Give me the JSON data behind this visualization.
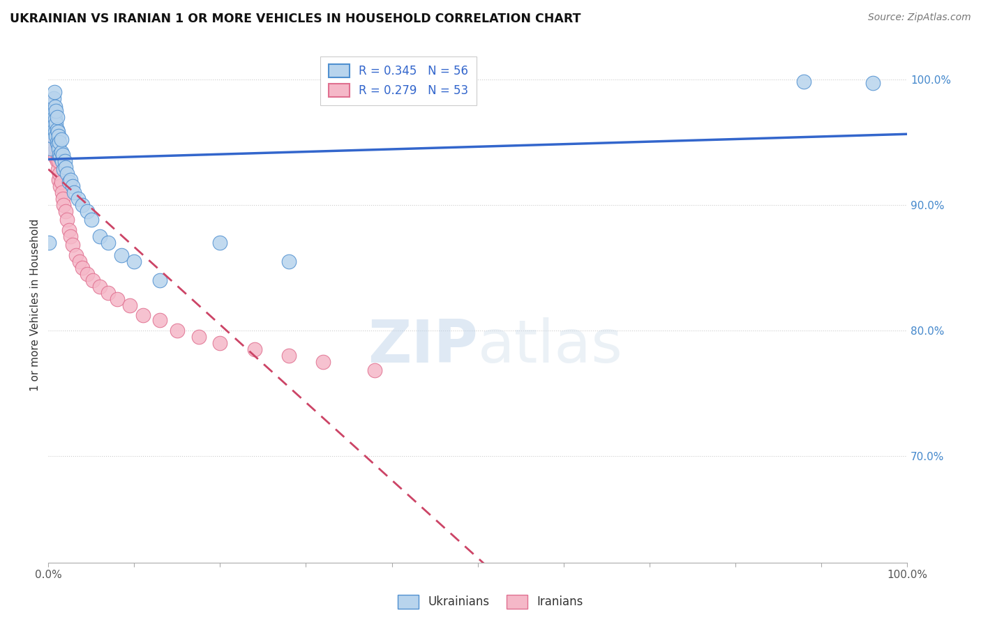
{
  "title": "UKRAINIAN VS IRANIAN 1 OR MORE VEHICLES IN HOUSEHOLD CORRELATION CHART",
  "source": "Source: ZipAtlas.com",
  "ylabel": "1 or more Vehicles in Household",
  "xlabel": "",
  "xlim": [
    0.0,
    1.0
  ],
  "ylim": [
    0.615,
    1.025
  ],
  "yticks": [
    0.7,
    0.8,
    0.9,
    1.0
  ],
  "ytick_labels": [
    "70.0%",
    "80.0%",
    "90.0%",
    "100.0%"
  ],
  "xticks": [
    0.0,
    0.1,
    0.2,
    0.3,
    0.4,
    0.5,
    0.6,
    0.7,
    0.8,
    0.9,
    1.0
  ],
  "xtick_labels": [
    "0.0%",
    "",
    "",
    "",
    "",
    "",
    "",
    "",
    "",
    "",
    "100.0%"
  ],
  "blue_R": 0.345,
  "blue_N": 56,
  "pink_R": 0.279,
  "pink_N": 53,
  "blue_color": "#b8d4ed",
  "pink_color": "#f5b8c8",
  "blue_edge_color": "#5090d0",
  "pink_edge_color": "#e07090",
  "blue_line_color": "#3366cc",
  "pink_line_color": "#cc4466",
  "watermark_zip": "ZIP",
  "watermark_atlas": "atlas",
  "legend_label_blue": "Ukrainians",
  "legend_label_pink": "Iranians",
  "blue_x": [
    0.001,
    0.002,
    0.003,
    0.003,
    0.004,
    0.004,
    0.005,
    0.005,
    0.005,
    0.006,
    0.006,
    0.006,
    0.007,
    0.007,
    0.007,
    0.008,
    0.008,
    0.008,
    0.009,
    0.009,
    0.009,
    0.01,
    0.01,
    0.01,
    0.011,
    0.011,
    0.012,
    0.012,
    0.013,
    0.013,
    0.014,
    0.015,
    0.015,
    0.016,
    0.017,
    0.018,
    0.019,
    0.02,
    0.022,
    0.024,
    0.026,
    0.028,
    0.03,
    0.035,
    0.04,
    0.045,
    0.05,
    0.06,
    0.07,
    0.085,
    0.1,
    0.13,
    0.2,
    0.28,
    0.88,
    0.96
  ],
  "blue_y": [
    0.87,
    0.96,
    0.945,
    0.97,
    0.958,
    0.975,
    0.968,
    0.955,
    0.98,
    0.965,
    0.975,
    0.985,
    0.96,
    0.97,
    0.99,
    0.958,
    0.968,
    0.978,
    0.955,
    0.965,
    0.975,
    0.95,
    0.96,
    0.97,
    0.948,
    0.958,
    0.945,
    0.955,
    0.94,
    0.95,
    0.938,
    0.942,
    0.952,
    0.935,
    0.94,
    0.928,
    0.935,
    0.93,
    0.925,
    0.918,
    0.92,
    0.915,
    0.91,
    0.905,
    0.9,
    0.895,
    0.888,
    0.875,
    0.87,
    0.86,
    0.855,
    0.84,
    0.87,
    0.855,
    0.998,
    0.997
  ],
  "pink_x": [
    0.001,
    0.002,
    0.002,
    0.003,
    0.003,
    0.004,
    0.004,
    0.005,
    0.005,
    0.006,
    0.006,
    0.006,
    0.007,
    0.007,
    0.008,
    0.008,
    0.009,
    0.009,
    0.01,
    0.01,
    0.011,
    0.011,
    0.012,
    0.012,
    0.013,
    0.014,
    0.015,
    0.016,
    0.017,
    0.018,
    0.02,
    0.022,
    0.024,
    0.026,
    0.028,
    0.032,
    0.036,
    0.04,
    0.045,
    0.052,
    0.06,
    0.07,
    0.08,
    0.095,
    0.11,
    0.13,
    0.15,
    0.175,
    0.2,
    0.24,
    0.28,
    0.32,
    0.38
  ],
  "pink_y": [
    0.95,
    0.965,
    0.98,
    0.955,
    0.97,
    0.96,
    0.975,
    0.948,
    0.968,
    0.958,
    0.97,
    0.942,
    0.962,
    0.972,
    0.952,
    0.938,
    0.945,
    0.958,
    0.935,
    0.948,
    0.94,
    0.928,
    0.935,
    0.92,
    0.925,
    0.915,
    0.918,
    0.91,
    0.905,
    0.9,
    0.895,
    0.888,
    0.88,
    0.875,
    0.868,
    0.86,
    0.855,
    0.85,
    0.845,
    0.84,
    0.835,
    0.83,
    0.825,
    0.82,
    0.812,
    0.808,
    0.8,
    0.795,
    0.79,
    0.785,
    0.78,
    0.775,
    0.768
  ]
}
